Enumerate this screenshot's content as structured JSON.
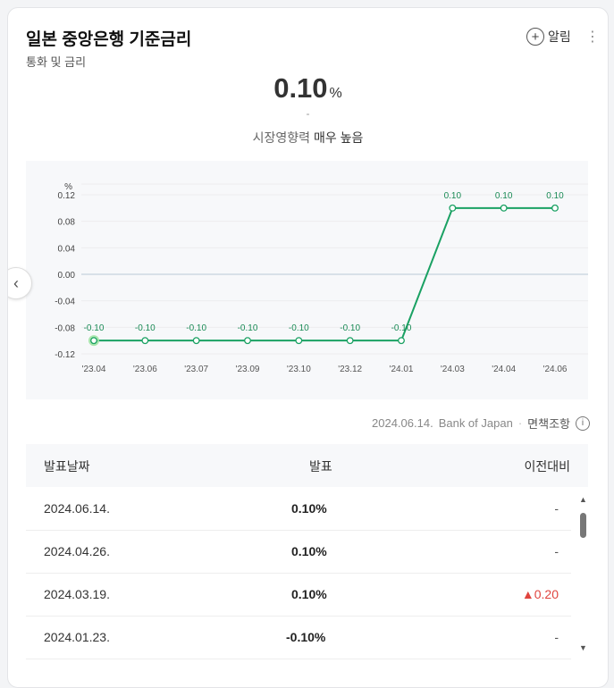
{
  "header": {
    "title": "일본 중앙은행 기준금리",
    "subtitle": "통화 및 금리",
    "alarm_label": "알림",
    "more": "⋮"
  },
  "summary": {
    "value": "0.10",
    "unit": "%",
    "change": "-",
    "impact_label": "시장영향력",
    "impact_level": "매우 높음"
  },
  "chart_data": {
    "type": "line",
    "ylabel": "%",
    "yticks": [
      "0.12",
      "0.08",
      "0.04",
      "0.00",
      "-0.04",
      "-0.08",
      "-0.12"
    ],
    "ylim": [
      -0.12,
      0.12
    ],
    "categories": [
      "'23.04",
      "'23.06",
      "'23.07",
      "'23.09",
      "'23.10",
      "'23.12",
      "'24.01",
      "'24.03",
      "'24.04",
      "'24.06"
    ],
    "values": [
      -0.1,
      -0.1,
      -0.1,
      -0.1,
      -0.1,
      -0.1,
      -0.1,
      0.1,
      0.1,
      0.1
    ],
    "data_labels": [
      "-0.10",
      "-0.10",
      "-0.10",
      "-0.10",
      "-0.10",
      "-0.10",
      "-0.10",
      "0.10",
      "0.10",
      "0.10"
    ],
    "line_color": "#1aa163",
    "grid": true
  },
  "source": {
    "date": "2024.06.14.",
    "provider": "Bank of Japan",
    "disclaimer": "면책조항"
  },
  "table": {
    "headers": [
      "발표날짜",
      "발표",
      "이전대비"
    ],
    "rows": [
      {
        "date": "2024.06.14.",
        "value": "0.10%",
        "change": "-",
        "up": false
      },
      {
        "date": "2024.04.26.",
        "value": "0.10%",
        "change": "-",
        "up": false
      },
      {
        "date": "2024.03.19.",
        "value": "0.10%",
        "change": "▲0.20",
        "up": true
      },
      {
        "date": "2024.01.23.",
        "value": "-0.10%",
        "change": "-",
        "up": false
      }
    ]
  },
  "colors": {
    "accent": "#1aa163",
    "up": "#e0443e"
  }
}
